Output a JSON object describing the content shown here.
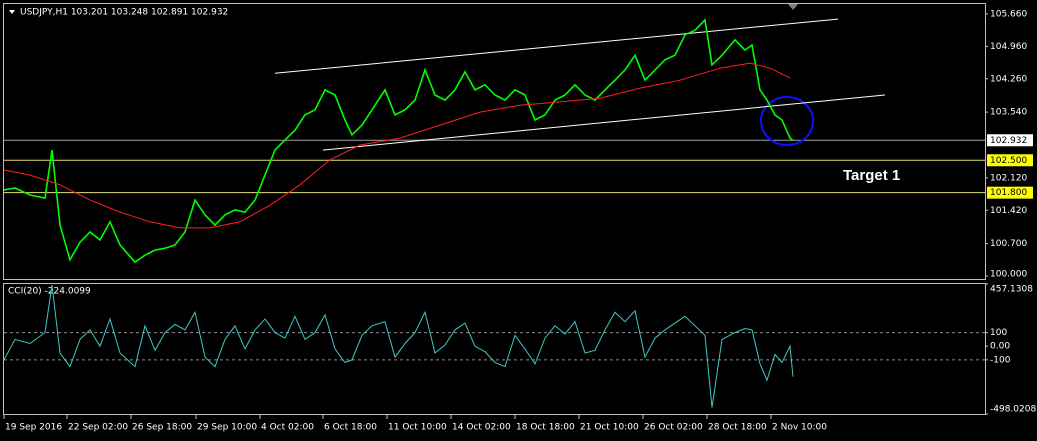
{
  "chart_data": [
    {
      "type": "line",
      "title": "USDJPY,H1 103.201 103.248 102.891 102.932",
      "annotation": "Target 1",
      "xlim": [
        4,
        985
      ],
      "ylim": [
        99.935,
        105.876
      ],
      "yticks": [
        {
          "value": 105.66,
          "label": "105.660"
        },
        {
          "value": 104.96,
          "label": "104.960"
        },
        {
          "value": 104.26,
          "label": "104.260"
        },
        {
          "value": 103.54,
          "label": "103.540"
        },
        {
          "value": 102.12,
          "label": "102.120"
        },
        {
          "value": 101.42,
          "label": "101.420"
        },
        {
          "value": 100.7,
          "label": "100.700"
        },
        {
          "value": 100,
          "label": "100.000"
        }
      ],
      "levels": [
        {
          "value": 102.932,
          "label": "102.932",
          "color": "#a0a0a0",
          "box": "#ffffff"
        },
        {
          "value": 102.5,
          "label": "102.500",
          "color": "#e8e070",
          "box": "#ffff00"
        },
        {
          "value": 101.8,
          "label": "101.800",
          "color": "#e8e070",
          "box": "#ffff00"
        }
      ],
      "trendlines": [
        {
          "x": [
            275,
            838
          ],
          "values": [
            104.38,
            105.55
          ],
          "color": "#ffffff"
        },
        {
          "x": [
            323,
            885
          ],
          "values": [
            102.72,
            103.91
          ],
          "color": "#ffffff"
        }
      ],
      "series": [
        {
          "color": "#00ff00",
          "x": [
            4,
            15,
            30,
            45,
            52,
            60,
            70,
            80,
            90,
            100,
            110,
            120,
            135,
            145,
            155,
            165,
            175,
            185,
            195,
            205,
            215,
            225,
            235,
            245,
            255,
            265,
            275,
            285,
            295,
            305,
            315,
            325,
            335,
            345,
            352,
            362,
            372,
            385,
            395,
            405,
            415,
            425,
            435,
            445,
            455,
            465,
            475,
            485,
            495,
            505,
            515,
            525,
            535,
            545,
            555,
            565,
            575,
            585,
            595,
            605,
            615,
            625,
            635,
            645,
            655,
            665,
            675,
            685,
            695,
            705,
            712,
            722,
            735,
            745,
            752,
            760,
            767,
            775,
            782,
            790,
            793
          ],
          "values": [
            101.86,
            101.9,
            101.75,
            101.68,
            102.72,
            101.1,
            100.35,
            100.73,
            100.95,
            100.78,
            101.17,
            100.67,
            100.3,
            100.45,
            100.56,
            100.6,
            100.67,
            100.95,
            101.64,
            101.32,
            101.1,
            101.32,
            101.43,
            101.38,
            101.64,
            102.18,
            102.72,
            102.94,
            103.15,
            103.48,
            103.59,
            104.02,
            103.91,
            103.37,
            103.05,
            103.26,
            103.59,
            104.02,
            103.48,
            103.59,
            103.8,
            104.45,
            103.91,
            103.8,
            104.02,
            104.41,
            104.02,
            104.13,
            103.91,
            103.8,
            104.02,
            103.91,
            103.37,
            103.48,
            103.8,
            103.91,
            104.13,
            103.91,
            103.8,
            104.02,
            104.23,
            104.45,
            104.77,
            104.23,
            104.45,
            104.67,
            104.77,
            105.21,
            105.31,
            105.53,
            104.56,
            104.77,
            105.1,
            104.88,
            104.99,
            104.02,
            103.8,
            103.48,
            103.37,
            102.98,
            102.93
          ]
        },
        {
          "color": "#ff2020",
          "x": [
            4,
            30,
            60,
            90,
            120,
            150,
            180,
            210,
            240,
            270,
            300,
            330,
            360,
            400,
            440,
            480,
            520,
            560,
            600,
            640,
            680,
            720,
            750,
            770,
            790
          ],
          "values": [
            102.29,
            102.18,
            101.97,
            101.64,
            101.38,
            101.17,
            101.04,
            101.04,
            101.17,
            101.53,
            101.97,
            102.51,
            102.83,
            102.98,
            103.26,
            103.54,
            103.69,
            103.76,
            103.84,
            104.06,
            104.23,
            104.49,
            104.6,
            104.49,
            104.28
          ]
        }
      ]
    },
    {
      "type": "line",
      "title": "CCI(20) -224.0099",
      "xlim": [
        4,
        985
      ],
      "ylim": [
        -498.0208,
        457.1308
      ],
      "yticks": [
        {
          "value": 457.1308,
          "label": "457.1308"
        },
        100,
        {
          "value": 0,
          "label": "0.00"
        },
        -100,
        {
          "value": -498.0208,
          "label": "-498.0208"
        }
      ],
      "dashed": [
        100,
        -100
      ],
      "xticks": [
        {
          "value": 4,
          "label": "19 Sep 2016"
        },
        {
          "value": 67,
          "label": "22 Sep 02:00"
        },
        {
          "value": 131,
          "label": "26 Sep 18:00"
        },
        {
          "value": 196,
          "label": "29 Sep 10:00"
        },
        {
          "value": 260,
          "label": "4 Oct 02:00"
        },
        {
          "value": 323,
          "label": "6 Oct 18:00"
        },
        {
          "value": 387,
          "label": "11 Oct 10:00"
        },
        {
          "value": 451,
          "label": "14 Oct 02:00"
        },
        {
          "value": 515,
          "label": "18 Oct 18:00"
        },
        {
          "value": 579,
          "label": "21 Oct 10:00"
        },
        {
          "value": 643,
          "label": "26 Oct 02:00"
        },
        {
          "value": 707,
          "label": "28 Oct 18:00"
        },
        {
          "value": 771,
          "label": "2 Nov 10:00"
        }
      ],
      "series": [
        {
          "color": "#40c8c8",
          "x": [
            4,
            15,
            30,
            45,
            52,
            60,
            70,
            80,
            90,
            100,
            110,
            120,
            135,
            145,
            155,
            165,
            175,
            185,
            195,
            205,
            215,
            225,
            235,
            245,
            255,
            265,
            275,
            285,
            295,
            305,
            315,
            325,
            335,
            345,
            352,
            362,
            372,
            385,
            395,
            405,
            415,
            425,
            435,
            445,
            455,
            465,
            475,
            485,
            495,
            505,
            515,
            525,
            535,
            545,
            555,
            565,
            575,
            585,
            595,
            605,
            615,
            625,
            635,
            645,
            655,
            665,
            675,
            685,
            695,
            705,
            712,
            722,
            735,
            745,
            752,
            760,
            767,
            775,
            782,
            790,
            793
          ],
          "values": [
            -100,
            50,
            20,
            100,
            450,
            -50,
            -150,
            50,
            120,
            0,
            200,
            -50,
            -150,
            150,
            -30,
            100,
            160,
            120,
            250,
            -80,
            -150,
            50,
            150,
            -20,
            120,
            200,
            100,
            60,
            220,
            50,
            100,
            230,
            -20,
            -120,
            -100,
            80,
            150,
            180,
            -80,
            20,
            100,
            250,
            -50,
            10,
            120,
            170,
            0,
            -40,
            -120,
            -150,
            80,
            -20,
            -130,
            60,
            150,
            90,
            180,
            -50,
            -30,
            120,
            250,
            180,
            260,
            -80,
            60,
            120,
            170,
            220,
            150,
            80,
            -450,
            50,
            100,
            130,
            120,
            -130,
            -250,
            -60,
            -120,
            0,
            -224
          ]
        }
      ]
    }
  ]
}
